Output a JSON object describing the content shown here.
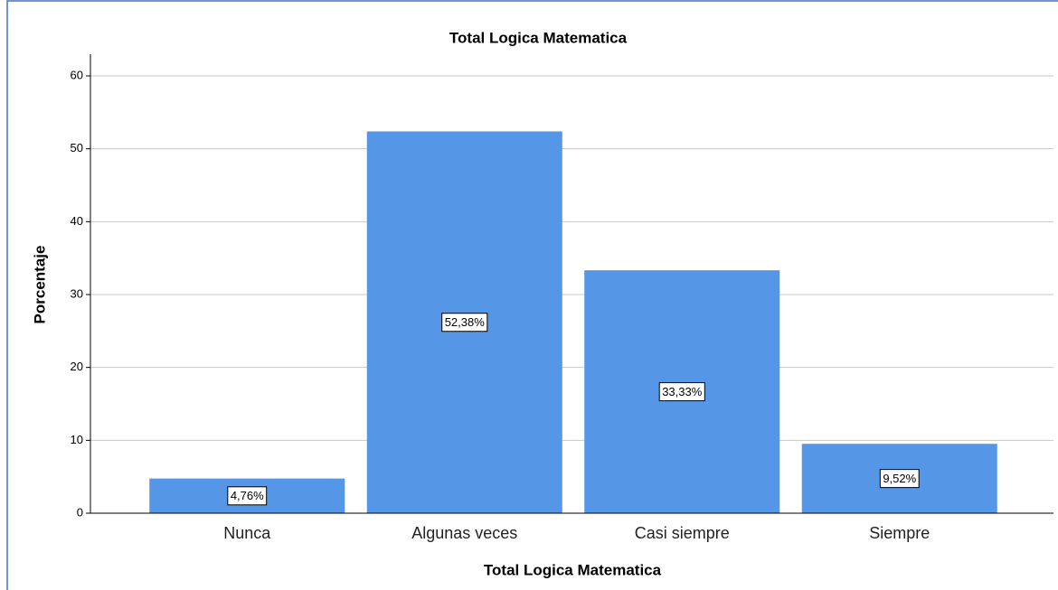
{
  "chart_data": {
    "type": "bar",
    "title": "Total Logica Matematica",
    "x_label": "Total Logica Matematica",
    "y_label": "Porcentaje",
    "categories": [
      "Nunca",
      "Algunas veces",
      "Casi siempre",
      "Siempre"
    ],
    "values": [
      4.76,
      52.38,
      33.33,
      9.52
    ],
    "value_labels": [
      "4,76%",
      "52,38%",
      "33,33%",
      "9,52%"
    ],
    "color": "#5596e6",
    "ylim": [
      0,
      60
    ],
    "yticks": [
      0,
      10,
      20,
      30,
      40,
      50,
      60
    ],
    "grid": true
  }
}
